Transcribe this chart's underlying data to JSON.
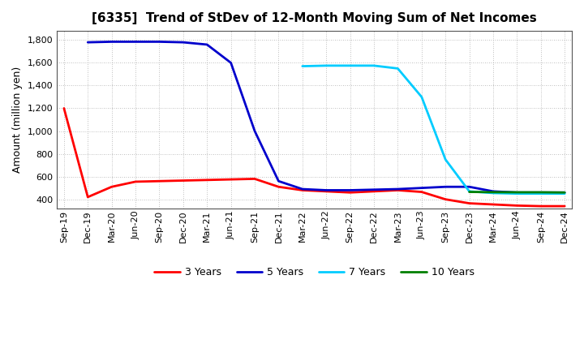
{
  "title": "[6335]  Trend of StDev of 12-Month Moving Sum of Net Incomes",
  "ylabel": "Amount (million yen)",
  "x_labels": [
    "Sep-19",
    "Dec-19",
    "Mar-20",
    "Jun-20",
    "Sep-20",
    "Dec-20",
    "Mar-21",
    "Jun-21",
    "Sep-21",
    "Dec-21",
    "Mar-22",
    "Jun-22",
    "Sep-22",
    "Dec-22",
    "Mar-23",
    "Jun-23",
    "Sep-23",
    "Dec-23",
    "Mar-24",
    "Jun-24",
    "Sep-24",
    "Dec-24"
  ],
  "series": {
    "3 Years": {
      "color": "#ff0000",
      "data": {
        "Sep-19": 1200,
        "Dec-19": 420,
        "Mar-20": 510,
        "Jun-20": 555,
        "Sep-20": 560,
        "Dec-20": 565,
        "Mar-21": 570,
        "Jun-21": 575,
        "Sep-21": 580,
        "Dec-21": 510,
        "Mar-22": 480,
        "Jun-22": 470,
        "Sep-22": 460,
        "Dec-22": 470,
        "Mar-23": 480,
        "Jun-23": 465,
        "Sep-23": 400,
        "Dec-23": 365,
        "Mar-24": 355,
        "Jun-24": 345,
        "Sep-24": 340,
        "Dec-24": 340
      }
    },
    "5 Years": {
      "color": "#0000cc",
      "data": {
        "Dec-19": 1780,
        "Mar-20": 1785,
        "Jun-20": 1785,
        "Sep-20": 1785,
        "Dec-20": 1780,
        "Mar-21": 1760,
        "Jun-21": 1600,
        "Sep-21": 1000,
        "Dec-21": 560,
        "Mar-22": 490,
        "Jun-22": 480,
        "Sep-22": 480,
        "Dec-22": 485,
        "Mar-23": 490,
        "Jun-23": 500,
        "Sep-23": 510,
        "Dec-23": 510,
        "Mar-24": 470,
        "Jun-24": 460,
        "Sep-24": 460,
        "Dec-24": 460
      }
    },
    "7 Years": {
      "color": "#00ccff",
      "data": {
        "Mar-22": 1570,
        "Jun-22": 1575,
        "Sep-22": 1575,
        "Dec-22": 1575,
        "Mar-23": 1550,
        "Jun-23": 1300,
        "Sep-23": 750,
        "Dec-23": 470,
        "Mar-24": 455,
        "Jun-24": 450,
        "Sep-24": 450,
        "Dec-24": 450
      }
    },
    "10 Years": {
      "color": "#008000",
      "data": {
        "Dec-23": 465,
        "Mar-24": 463,
        "Jun-24": 462,
        "Sep-24": 462,
        "Dec-24": 460
      }
    }
  },
  "ylim": [
    320,
    1880
  ],
  "yticks": [
    400,
    600,
    800,
    1000,
    1200,
    1400,
    1600,
    1800
  ],
  "background_color": "#ffffff",
  "grid_color": "#aaaaaa",
  "title_fontsize": 11,
  "axis_fontsize": 8,
  "ylabel_fontsize": 9,
  "legend_fontsize": 9,
  "linewidth": 2.0
}
